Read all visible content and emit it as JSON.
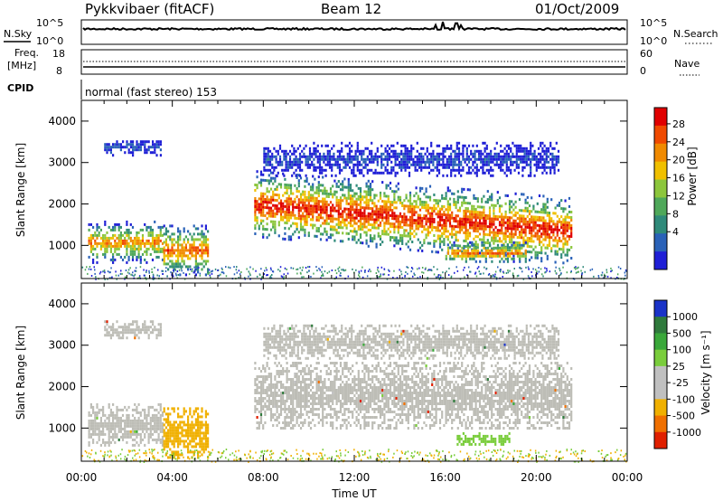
{
  "header": {
    "station": "Pykkvibaer (fitACF)",
    "beam": "Beam 12",
    "date": "01/Oct/2009"
  },
  "noise_panel": {
    "left_label": "N.Sky",
    "right_label": "N.Search",
    "left_ticks": [
      "10^5",
      "10^0"
    ],
    "right_ticks": [
      "10^5",
      "10^0"
    ]
  },
  "freq_panel": {
    "left_label_1": "Freq.",
    "left_label_2": "[MHz]",
    "right_label": "Nave",
    "left_ticks": [
      "18",
      "8"
    ],
    "right_ticks": [
      "60",
      "0"
    ]
  },
  "cpid_panel": {
    "label": "CPID",
    "program": "normal (fast stereo) 153"
  },
  "colors": {
    "power_scale": [
      "#1f1fd6",
      "#2a62b8",
      "#2f8a7a",
      "#4fa85a",
      "#8cc63c",
      "#f0c000",
      "#f08a00",
      "#f04a00",
      "#e00000"
    ],
    "velocity_scale": [
      "#1a33c8",
      "#2f7a3c",
      "#3aa83a",
      "#7acd3c",
      "#c0c0c0",
      "#c0c0c0",
      "#f0b000",
      "#f07000",
      "#e02000"
    ],
    "ground_scatter": "#bdbdb6"
  },
  "chart_data": [
    {
      "type": "heatmap",
      "panel": "power",
      "ylabel": "Slant Range [km]",
      "ylim": [
        200,
        4500
      ],
      "yticks": [
        "1000",
        "2000",
        "3000",
        "4000"
      ],
      "x": [
        "00:00",
        "04:00",
        "08:00",
        "12:00",
        "16:00",
        "20:00",
        "00:00"
      ],
      "colorbar_label": "Power [dB]",
      "colorbar_ticks": [
        "4",
        "8",
        "12",
        "16",
        "20",
        "24",
        "28"
      ],
      "regions": [
        {
          "t": [
            0.3,
            3.6
          ],
          "r": [
            600,
            1600
          ],
          "peak_db": 24
        },
        {
          "t": [
            3.6,
            5.6
          ],
          "r": [
            300,
            1500
          ],
          "peak_db": 26
        },
        {
          "t": [
            7.6,
            21.5
          ],
          "r": [
            1000,
            2600
          ],
          "peak_db": 30
        },
        {
          "t": [
            16.0,
            19.5
          ],
          "r": [
            600,
            1100
          ],
          "peak_db": 26
        },
        {
          "t": [
            1.0,
            3.5
          ],
          "r": [
            3200,
            3600
          ],
          "peak_db": 6
        },
        {
          "t": [
            8.0,
            21.0
          ],
          "r": [
            2700,
            3500
          ],
          "peak_db": 6
        }
      ]
    },
    {
      "type": "heatmap",
      "panel": "velocity",
      "ylabel": "Slant Range [km]",
      "ylim": [
        200,
        4500
      ],
      "yticks": [
        "1000",
        "2000",
        "3000",
        "4000"
      ],
      "x": [
        "00:00",
        "04:00",
        "08:00",
        "12:00",
        "16:00",
        "20:00",
        "00:00"
      ],
      "xlabel": "Time UT",
      "colorbar_label": "Velocity [m s⁻¹]",
      "colorbar_ticks": [
        "1000",
        "500",
        "100",
        "25",
        "-25",
        "-100",
        "-500",
        "-1000"
      ],
      "regions": [
        {
          "t": [
            7.6,
            21.5
          ],
          "r": [
            1000,
            2600
          ],
          "velocity": "ground scatter"
        },
        {
          "t": [
            0.3,
            3.6
          ],
          "r": [
            600,
            1600
          ],
          "velocity": "ground scatter"
        },
        {
          "t": [
            3.6,
            5.6
          ],
          "r": [
            300,
            1500
          ],
          "velocity": -100
        },
        {
          "t": [
            16.5,
            18.8
          ],
          "r": [
            600,
            900
          ],
          "velocity": 100
        },
        {
          "t": [
            1.0,
            3.5
          ],
          "r": [
            3200,
            3600
          ],
          "velocity": "ground scatter"
        },
        {
          "t": [
            8.0,
            21.0
          ],
          "r": [
            2700,
            3500
          ],
          "velocity": "ground scatter"
        }
      ]
    }
  ]
}
